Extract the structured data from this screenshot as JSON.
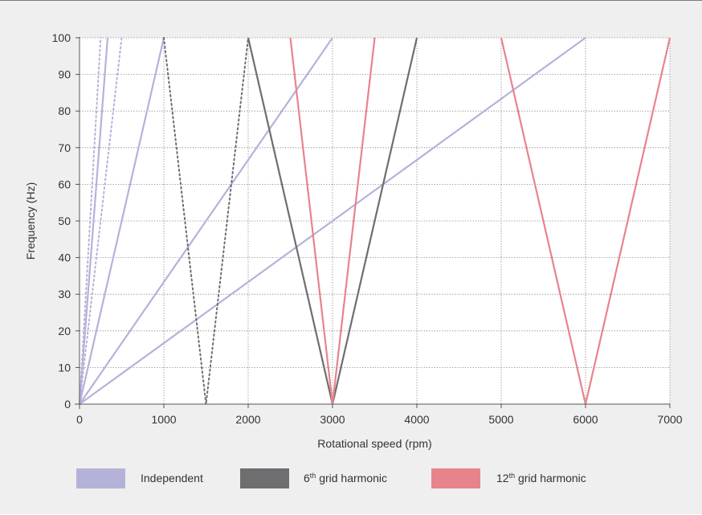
{
  "chart_data": {
    "type": "line",
    "xlabel": "Rotational speed (rpm)",
    "ylabel": "Frequency (Hz)",
    "xlim": [
      0,
      7000
    ],
    "ylim": [
      0,
      100
    ],
    "xticks": [
      "0",
      "1000",
      "2000",
      "3000",
      "4000",
      "5000",
      "6000",
      "7000"
    ],
    "yticks": [
      "0",
      "10",
      "20",
      "30",
      "40",
      "50",
      "60",
      "70",
      "80",
      "90",
      "100"
    ],
    "grid": true,
    "legend_placement": "bottom",
    "colors": {
      "independent": "#b5b2da",
      "grid6": "#6e6e70",
      "grid12": "#e8838c",
      "grid_line": "#777777",
      "plot_bg": "#ffffff",
      "panel_bg": "#efeff0"
    },
    "legend": [
      {
        "key": "independent",
        "label": "Independent",
        "sup": "",
        "suffix": ""
      },
      {
        "key": "grid6",
        "label": "6",
        "sup": "th",
        "suffix": " grid harmonic"
      },
      {
        "key": "grid12",
        "label": "12",
        "sup": "th",
        "suffix": " grid harmonic"
      }
    ],
    "series": [
      {
        "group": "independent",
        "dashed": false,
        "points": [
          [
            0,
            0
          ],
          [
            333,
            100
          ]
        ]
      },
      {
        "group": "independent",
        "dashed": false,
        "points": [
          [
            0,
            0
          ],
          [
            1000,
            100
          ]
        ]
      },
      {
        "group": "independent",
        "dashed": false,
        "points": [
          [
            0,
            0
          ],
          [
            3000,
            100
          ]
        ]
      },
      {
        "group": "independent",
        "dashed": false,
        "points": [
          [
            0,
            0
          ],
          [
            6000,
            100
          ]
        ]
      },
      {
        "group": "independent",
        "dashed": true,
        "points": [
          [
            0,
            0
          ],
          [
            250,
            100
          ]
        ]
      },
      {
        "group": "independent",
        "dashed": true,
        "points": [
          [
            0,
            0
          ],
          [
            500,
            100
          ]
        ]
      },
      {
        "group": "grid6",
        "dashed": true,
        "points": [
          [
            1000,
            100
          ],
          [
            1500,
            0
          ],
          [
            2000,
            100
          ]
        ]
      },
      {
        "group": "grid6",
        "dashed": false,
        "points": [
          [
            2000,
            100
          ],
          [
            3000,
            0
          ],
          [
            4000,
            100
          ]
        ]
      },
      {
        "group": "grid12",
        "dashed": false,
        "points": [
          [
            2500,
            100
          ],
          [
            3000,
            0
          ],
          [
            3500,
            100
          ]
        ]
      },
      {
        "group": "grid12",
        "dashed": false,
        "points": [
          [
            5000,
            100
          ],
          [
            6000,
            0
          ],
          [
            7000,
            100
          ]
        ]
      }
    ]
  }
}
